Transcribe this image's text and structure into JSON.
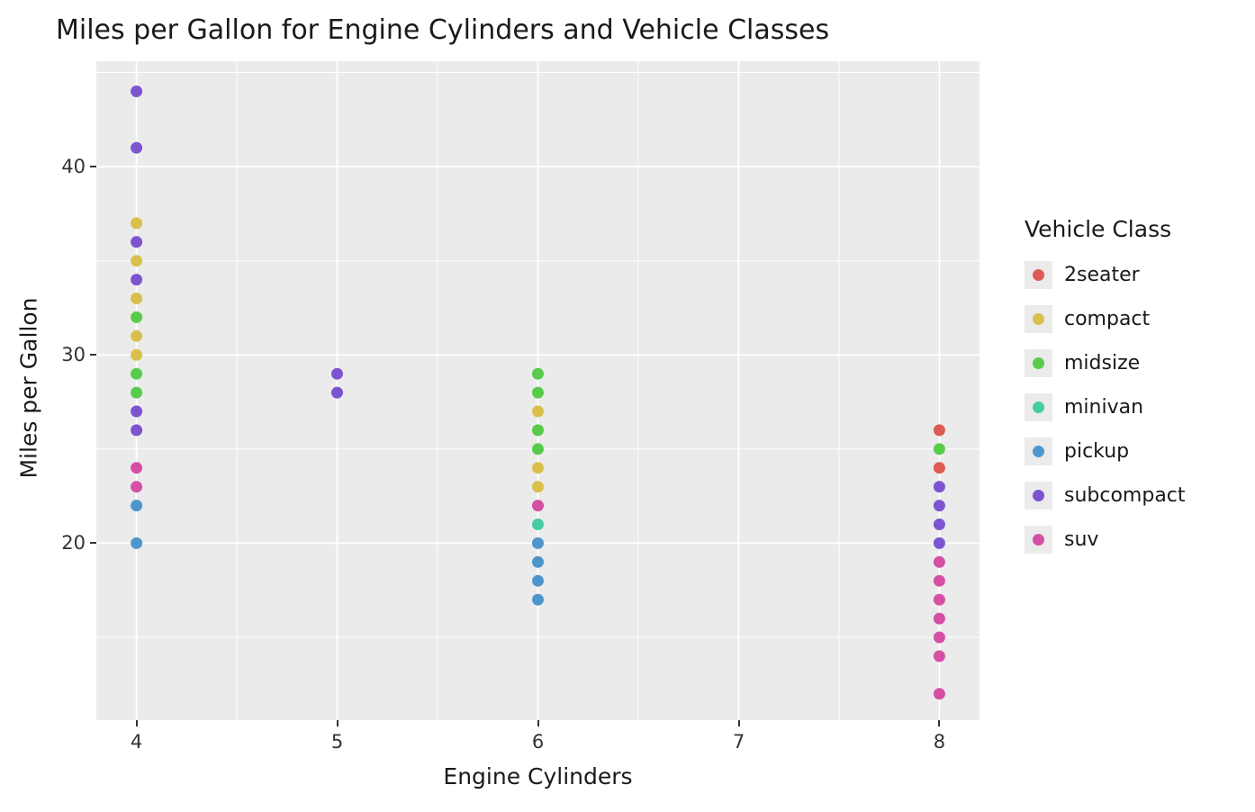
{
  "title": "Miles per Gallon for Engine Cylinders and Vehicle Classes",
  "x_axis": {
    "label": "Engine Cylinders",
    "tick_labels": [
      "4",
      "5",
      "6",
      "7",
      "8"
    ]
  },
  "y_axis": {
    "label": "Miles per Gallon",
    "tick_labels": [
      "20",
      "30",
      "40"
    ]
  },
  "legend": {
    "title": "Vehicle Class",
    "items": [
      {
        "label": "2seater",
        "color": "#dd5b54"
      },
      {
        "label": "compact",
        "color": "#d9c04b"
      },
      {
        "label": "midsize",
        "color": "#58cc4a"
      },
      {
        "label": "minivan",
        "color": "#45cca2"
      },
      {
        "label": "pickup",
        "color": "#4e95cc"
      },
      {
        "label": "subcompact",
        "color": "#7d54d0"
      },
      {
        "label": "suv",
        "color": "#d54fa5"
      }
    ]
  },
  "style": {
    "panel_background": "#ebebeb",
    "gridline_color": "#ffffff",
    "tick_color": "#333333"
  },
  "chart_data": {
    "type": "scatter",
    "title": "Miles per Gallon for Engine Cylinders and Vehicle Classes",
    "xlabel": "Engine Cylinders",
    "ylabel": "Miles per Gallon",
    "xlim": [
      3.8,
      8.2
    ],
    "ylim": [
      10.6,
      45.6
    ],
    "x_ticks": [
      4,
      5,
      6,
      7,
      8
    ],
    "y_ticks": [
      20,
      30,
      40
    ],
    "x_minor_ticks": [
      4.5,
      5.5,
      6.5,
      7.5
    ],
    "y_minor_ticks": [
      15,
      25,
      35,
      45
    ],
    "grid": true,
    "legend_position": "right",
    "legend_title": "Vehicle Class",
    "series": [
      {
        "name": "2seater",
        "color": "#dd5b54",
        "points": [
          [
            8,
            26
          ],
          [
            8,
            24
          ]
        ]
      },
      {
        "name": "compact",
        "color": "#d9c04b",
        "points": [
          [
            4,
            37
          ],
          [
            4,
            35
          ],
          [
            4,
            33
          ],
          [
            4,
            31
          ],
          [
            4,
            30
          ],
          [
            6,
            27
          ],
          [
            6,
            24
          ],
          [
            6,
            23
          ]
        ]
      },
      {
        "name": "midsize",
        "color": "#58cc4a",
        "points": [
          [
            4,
            32
          ],
          [
            4,
            29
          ],
          [
            4,
            28
          ],
          [
            6,
            29
          ],
          [
            6,
            28
          ],
          [
            6,
            26
          ],
          [
            6,
            25
          ],
          [
            8,
            25
          ]
        ]
      },
      {
        "name": "minivan",
        "color": "#45cca2",
        "points": [
          [
            6,
            21
          ]
        ]
      },
      {
        "name": "pickup",
        "color": "#4e95cc",
        "points": [
          [
            4,
            22
          ],
          [
            4,
            20
          ],
          [
            6,
            20
          ],
          [
            6,
            19
          ],
          [
            6,
            18
          ],
          [
            6,
            17
          ]
        ]
      },
      {
        "name": "subcompact",
        "color": "#7d54d0",
        "points": [
          [
            4,
            44
          ],
          [
            4,
            41
          ],
          [
            4,
            36
          ],
          [
            4,
            34
          ],
          [
            4,
            27
          ],
          [
            4,
            26
          ],
          [
            5,
            29
          ],
          [
            5,
            28
          ],
          [
            8,
            23
          ],
          [
            8,
            22
          ],
          [
            8,
            21
          ],
          [
            8,
            20
          ]
        ]
      },
      {
        "name": "suv",
        "color": "#d54fa5",
        "points": [
          [
            4,
            24
          ],
          [
            4,
            23
          ],
          [
            6,
            22
          ],
          [
            8,
            19
          ],
          [
            8,
            18
          ],
          [
            8,
            17
          ],
          [
            8,
            16
          ],
          [
            8,
            15
          ],
          [
            8,
            14
          ],
          [
            8,
            12
          ]
        ]
      }
    ]
  }
}
